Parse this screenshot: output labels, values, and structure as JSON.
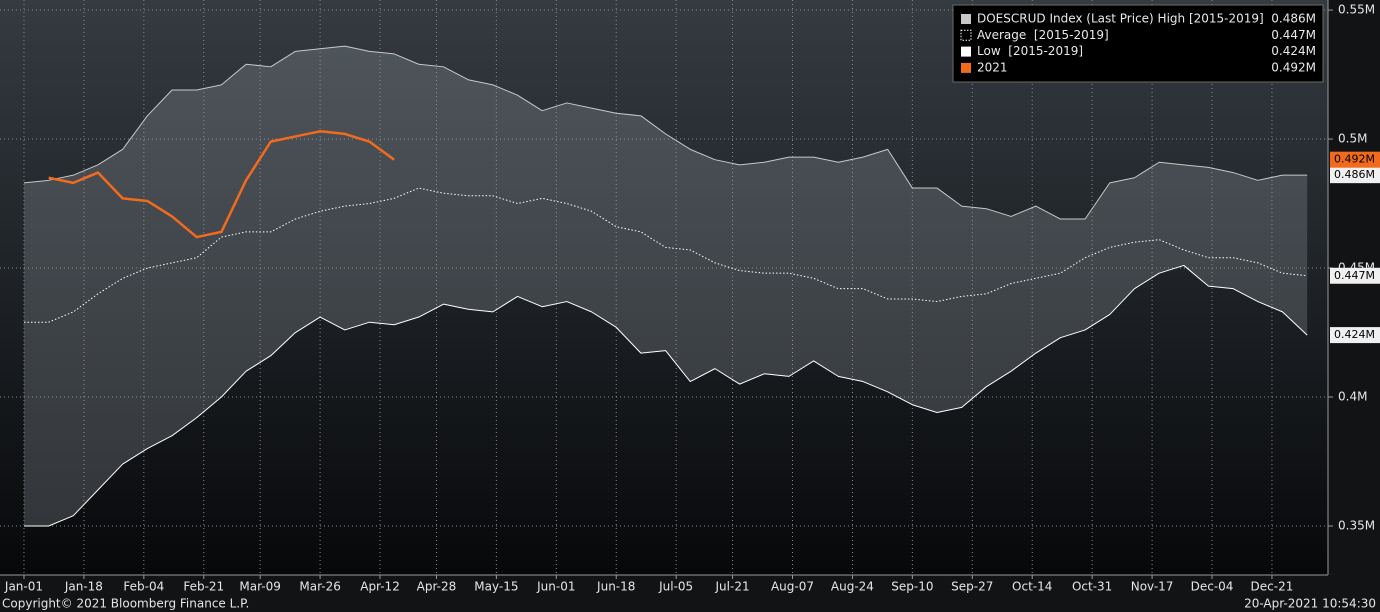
{
  "chart_data": {
    "type": "line",
    "x": [
      0,
      7,
      14,
      21,
      28,
      35,
      42,
      49,
      56,
      63,
      70,
      77,
      84,
      91,
      98,
      105,
      112,
      119,
      126,
      133,
      140,
      147,
      154,
      161,
      168,
      175,
      182,
      189,
      196,
      203,
      210,
      217,
      224,
      231,
      238,
      245,
      252,
      259,
      266,
      273,
      280,
      287,
      294,
      301,
      308,
      315,
      322,
      329,
      336,
      343,
      350,
      357,
      364
    ],
    "xlim": [
      -6.8,
      369.9
    ],
    "xticks": [
      {
        "value": 0,
        "label": "Jan-01"
      },
      {
        "value": 17,
        "label": "Jan-18"
      },
      {
        "value": 34,
        "label": "Feb-04"
      },
      {
        "value": 51,
        "label": "Feb-21"
      },
      {
        "value": 67,
        "label": "Mar-09"
      },
      {
        "value": 84,
        "label": "Mar-26"
      },
      {
        "value": 101,
        "label": "Apr-12"
      },
      {
        "value": 117,
        "label": "Apr-28"
      },
      {
        "value": 134,
        "label": "May-15"
      },
      {
        "value": 151,
        "label": "Jun-01"
      },
      {
        "value": 168,
        "label": "Jun-18"
      },
      {
        "value": 185,
        "label": "Jul-05"
      },
      {
        "value": 201,
        "label": "Jul-21"
      },
      {
        "value": 218,
        "label": "Aug-07"
      },
      {
        "value": 235,
        "label": "Aug-24"
      },
      {
        "value": 252,
        "label": "Sep-10"
      },
      {
        "value": 269,
        "label": "Sep-27"
      },
      {
        "value": 286,
        "label": "Oct-14"
      },
      {
        "value": 303,
        "label": "Oct-31"
      },
      {
        "value": 320,
        "label": "Nov-17"
      },
      {
        "value": 337,
        "label": "Dec-04"
      },
      {
        "value": 354,
        "label": "Dec-21"
      }
    ],
    "ylim": [
      0.331,
      0.5539
    ],
    "yticks": [
      {
        "value": 0.35,
        "label": "0.35M"
      },
      {
        "value": 0.4,
        "label": "0.4M"
      },
      {
        "value": 0.45,
        "label": "0.45M"
      },
      {
        "value": 0.5,
        "label": "0.5M"
      },
      {
        "value": 0.55,
        "label": "0.55M"
      }
    ],
    "grid": true,
    "legend": "top-right",
    "band_color": "#9aa3aa",
    "series": [
      {
        "name": "DOESCRUD Index (Last Price) High [2015-2019]",
        "color": "#c8c8c8",
        "style": "solid",
        "last_label": "0.486M",
        "values": [
          0.483,
          0.484,
          0.486,
          0.49,
          0.496,
          0.509,
          0.519,
          0.519,
          0.521,
          0.529,
          0.528,
          0.534,
          0.535,
          0.536,
          0.534,
          0.533,
          0.529,
          0.528,
          0.523,
          0.521,
          0.517,
          0.511,
          0.514,
          0.512,
          0.51,
          0.509,
          0.502,
          0.496,
          0.492,
          0.49,
          0.491,
          0.493,
          0.493,
          0.491,
          0.493,
          0.496,
          0.481,
          0.481,
          0.474,
          0.473,
          0.47,
          0.474,
          0.469,
          0.469,
          0.483,
          0.485,
          0.491,
          0.49,
          0.489,
          0.487,
          0.484,
          0.486,
          0.486
        ]
      },
      {
        "name": "Average  [2015-2019]",
        "color": "#ffffff",
        "style": "dotted",
        "last_label": "0.447M",
        "values": [
          0.429,
          0.429,
          0.433,
          0.44,
          0.446,
          0.45,
          0.452,
          0.454,
          0.462,
          0.464,
          0.464,
          0.469,
          0.472,
          0.474,
          0.475,
          0.477,
          0.481,
          0.479,
          0.478,
          0.478,
          0.475,
          0.477,
          0.475,
          0.472,
          0.466,
          0.464,
          0.458,
          0.457,
          0.452,
          0.449,
          0.448,
          0.448,
          0.446,
          0.442,
          0.442,
          0.438,
          0.438,
          0.437,
          0.439,
          0.44,
          0.444,
          0.446,
          0.448,
          0.454,
          0.458,
          0.46,
          0.461,
          0.457,
          0.454,
          0.454,
          0.452,
          0.448,
          0.447
        ]
      },
      {
        "name": "Low  [2015-2019]",
        "color": "#ffffff",
        "style": "solid",
        "last_label": "0.424M",
        "values": [
          0.35,
          0.35,
          0.354,
          0.364,
          0.374,
          0.38,
          0.385,
          0.392,
          0.4,
          0.41,
          0.416,
          0.425,
          0.431,
          0.426,
          0.429,
          0.428,
          0.431,
          0.436,
          0.434,
          0.433,
          0.439,
          0.435,
          0.437,
          0.433,
          0.427,
          0.417,
          0.418,
          0.406,
          0.411,
          0.405,
          0.409,
          0.408,
          0.414,
          0.408,
          0.406,
          0.402,
          0.397,
          0.394,
          0.396,
          0.404,
          0.41,
          0.417,
          0.423,
          0.426,
          0.432,
          0.442,
          0.448,
          0.451,
          0.443,
          0.442,
          0.437,
          0.433,
          0.424
        ]
      },
      {
        "name": "2021",
        "color": "#f26b1d",
        "style": "thick",
        "last_label": "0.492M",
        "values": [
          null,
          0.485,
          0.483,
          0.487,
          0.477,
          0.476,
          0.47,
          0.462,
          0.464,
          0.484,
          0.499,
          0.501,
          0.503,
          0.502,
          0.499,
          0.492,
          null,
          null,
          null,
          null,
          null,
          null,
          null,
          null,
          null,
          null,
          null,
          null,
          null,
          null,
          null,
          null,
          null,
          null,
          null,
          null,
          null,
          null,
          null,
          null,
          null,
          null,
          null,
          null,
          null,
          null,
          null,
          null,
          null,
          null,
          null,
          null,
          null
        ]
      }
    ],
    "footer_left": "Copyright© 2021 Bloomberg Finance L.P.",
    "footer_right": "20-Apr-2021 10:54:30"
  }
}
